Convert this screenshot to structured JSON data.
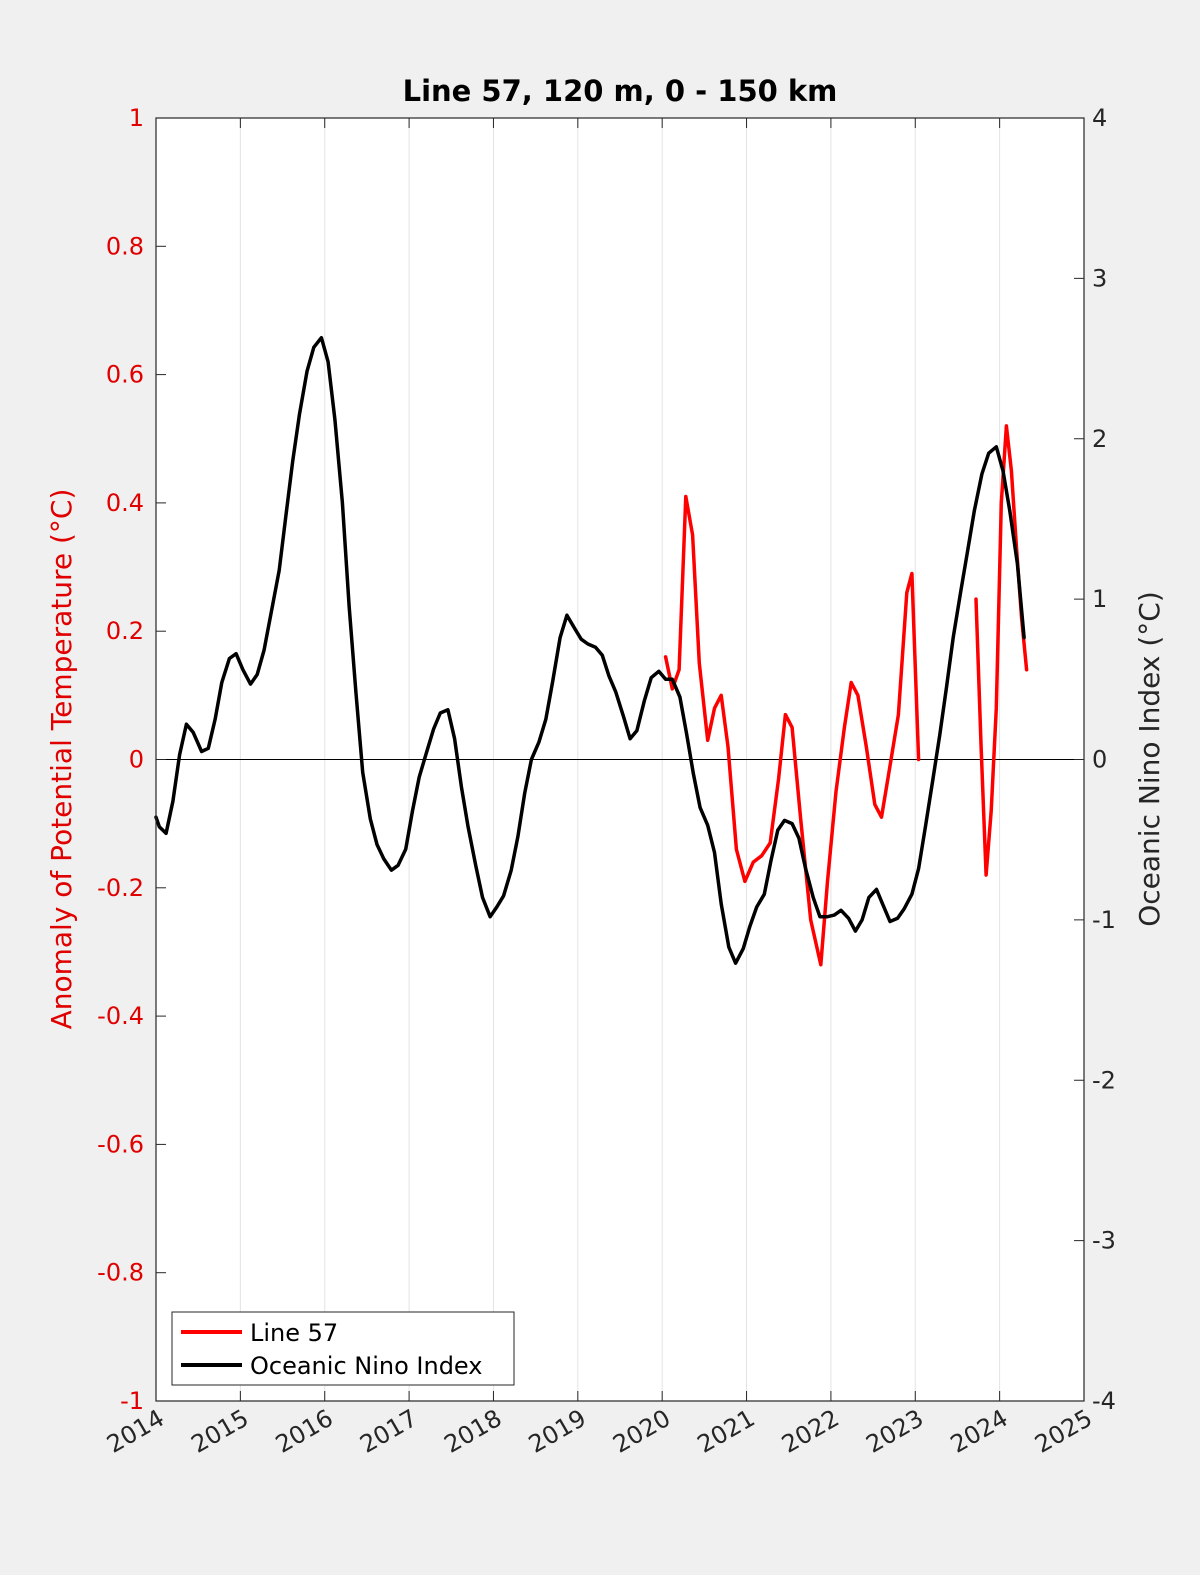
{
  "chart_data": {
    "type": "line",
    "title": "Line 57, 120 m, 0 - 150 km",
    "xlabel": "",
    "ylabel_left": "Anomaly of Potential Temperature (°C)",
    "ylabel_right": "Oceanic Nino Index (°C)",
    "xlim": [
      2014,
      2025
    ],
    "ylim_left": [
      -1,
      1
    ],
    "ylim_right": [
      -4,
      4
    ],
    "x_ticks": [
      2014,
      2015,
      2016,
      2017,
      2018,
      2019,
      2020,
      2021,
      2022,
      2023,
      2024,
      2025
    ],
    "x_tick_labels": [
      "2014",
      "2015",
      "2016",
      "2017",
      "2018",
      "2019",
      "2020",
      "2021",
      "2022",
      "2023",
      "2024",
      "2025"
    ],
    "y_left_ticks": [
      -1,
      -0.8,
      -0.6,
      -0.4,
      -0.2,
      0,
      0.2,
      0.4,
      0.6,
      0.8,
      1
    ],
    "y_left_tick_labels": [
      "-1",
      "-0.8",
      "-0.6",
      "-0.4",
      "-0.2",
      "0",
      "0.2",
      "0.4",
      "0.6",
      "0.8",
      "1"
    ],
    "y_right_ticks": [
      -4,
      -3,
      -2,
      -1,
      0,
      1,
      2,
      3,
      4
    ],
    "y_right_tick_labels": [
      "-4",
      "-3",
      "-2",
      "-1",
      "0",
      "1",
      "2",
      "3",
      "4"
    ],
    "grid": "vertical",
    "zero_line": true,
    "legend": "bottom-left",
    "colors": {
      "line57": "#ff0000",
      "oni": "#000000"
    },
    "series": [
      {
        "name": "Line 57",
        "axis": "left",
        "color": "#ff0000",
        "segments": [
          [
            [
              2020.04,
              0.16
            ],
            [
              2020.12,
              0.11
            ],
            [
              2020.2,
              0.14
            ],
            [
              2020.28,
              0.41
            ],
            [
              2020.36,
              0.35
            ],
            [
              2020.44,
              0.15
            ],
            [
              2020.54,
              0.03
            ],
            [
              2020.62,
              0.08
            ],
            [
              2020.7,
              0.1
            ],
            [
              2020.78,
              0.02
            ],
            [
              2020.88,
              -0.14
            ],
            [
              2020.98,
              -0.19
            ],
            [
              2021.08,
              -0.16
            ],
            [
              2021.18,
              -0.15
            ],
            [
              2021.28,
              -0.13
            ],
            [
              2021.38,
              -0.03
            ],
            [
              2021.46,
              0.07
            ],
            [
              2021.54,
              0.05
            ],
            [
              2021.64,
              -0.09
            ],
            [
              2021.76,
              -0.25
            ],
            [
              2021.88,
              -0.32
            ],
            [
              2021.96,
              -0.19
            ],
            [
              2022.06,
              -0.05
            ],
            [
              2022.16,
              0.05
            ],
            [
              2022.24,
              0.12
            ],
            [
              2022.32,
              0.1
            ],
            [
              2022.42,
              0.02
            ],
            [
              2022.52,
              -0.07
            ],
            [
              2022.6,
              -0.09
            ],
            [
              2022.7,
              -0.01
            ],
            [
              2022.8,
              0.07
            ],
            [
              2022.9,
              0.26
            ],
            [
              2022.96,
              0.29
            ],
            [
              2023.04,
              0.0
            ]
          ],
          [
            [
              2023.72,
              0.25
            ],
            [
              2023.78,
              0.02
            ],
            [
              2023.84,
              -0.18
            ],
            [
              2023.9,
              -0.08
            ],
            [
              2023.96,
              0.08
            ],
            [
              2024.02,
              0.4
            ],
            [
              2024.08,
              0.52
            ],
            [
              2024.14,
              0.45
            ],
            [
              2024.2,
              0.33
            ],
            [
              2024.26,
              0.22
            ],
            [
              2024.32,
              0.14
            ]
          ]
        ]
      },
      {
        "name": "Oceanic Nino Index",
        "axis": "right",
        "color": "#000000",
        "segments": [
          [
            [
              2014.0,
              -0.36
            ],
            [
              2014.04,
              -0.42
            ],
            [
              2014.12,
              -0.46
            ],
            [
              2014.2,
              -0.26
            ],
            [
              2014.28,
              0.03
            ],
            [
              2014.36,
              0.22
            ],
            [
              2014.44,
              0.17
            ],
            [
              2014.54,
              0.05
            ],
            [
              2014.62,
              0.07
            ],
            [
              2014.7,
              0.25
            ],
            [
              2014.78,
              0.48
            ],
            [
              2014.87,
              0.63
            ],
            [
              2014.95,
              0.66
            ],
            [
              2015.03,
              0.56
            ],
            [
              2015.12,
              0.47
            ],
            [
              2015.2,
              0.53
            ],
            [
              2015.28,
              0.68
            ],
            [
              2015.37,
              0.93
            ],
            [
              2015.46,
              1.18
            ],
            [
              2015.54,
              1.52
            ],
            [
              2015.62,
              1.86
            ],
            [
              2015.7,
              2.15
            ],
            [
              2015.79,
              2.42
            ],
            [
              2015.87,
              2.57
            ],
            [
              2015.96,
              2.63
            ],
            [
              2016.04,
              2.48
            ],
            [
              2016.12,
              2.12
            ],
            [
              2016.21,
              1.6
            ],
            [
              2016.29,
              0.95
            ],
            [
              2016.37,
              0.42
            ],
            [
              2016.45,
              -0.08
            ],
            [
              2016.54,
              -0.37
            ],
            [
              2016.62,
              -0.53
            ],
            [
              2016.7,
              -0.62
            ],
            [
              2016.79,
              -0.69
            ],
            [
              2016.87,
              -0.66
            ],
            [
              2016.96,
              -0.56
            ],
            [
              2017.04,
              -0.32
            ],
            [
              2017.12,
              -0.11
            ],
            [
              2017.21,
              0.05
            ],
            [
              2017.29,
              0.19
            ],
            [
              2017.37,
              0.29
            ],
            [
              2017.46,
              0.31
            ],
            [
              2017.54,
              0.13
            ],
            [
              2017.62,
              -0.17
            ],
            [
              2017.7,
              -0.42
            ],
            [
              2017.79,
              -0.66
            ],
            [
              2017.87,
              -0.86
            ],
            [
              2017.96,
              -0.98
            ],
            [
              2018.04,
              -0.92
            ],
            [
              2018.12,
              -0.85
            ],
            [
              2018.21,
              -0.69
            ],
            [
              2018.29,
              -0.48
            ],
            [
              2018.37,
              -0.21
            ],
            [
              2018.45,
              0.0
            ],
            [
              2018.54,
              0.11
            ],
            [
              2018.62,
              0.25
            ],
            [
              2018.7,
              0.48
            ],
            [
              2018.79,
              0.76
            ],
            [
              2018.87,
              0.9
            ],
            [
              2018.96,
              0.82
            ],
            [
              2019.04,
              0.75
            ],
            [
              2019.12,
              0.72
            ],
            [
              2019.21,
              0.7
            ],
            [
              2019.29,
              0.65
            ],
            [
              2019.37,
              0.52
            ],
            [
              2019.45,
              0.42
            ],
            [
              2019.54,
              0.27
            ],
            [
              2019.62,
              0.13
            ],
            [
              2019.7,
              0.18
            ],
            [
              2019.79,
              0.37
            ],
            [
              2019.87,
              0.51
            ],
            [
              2019.96,
              0.55
            ],
            [
              2020.04,
              0.5
            ],
            [
              2020.12,
              0.5
            ],
            [
              2020.21,
              0.39
            ],
            [
              2020.29,
              0.16
            ],
            [
              2020.37,
              -0.09
            ],
            [
              2020.45,
              -0.3
            ],
            [
              2020.54,
              -0.41
            ],
            [
              2020.62,
              -0.58
            ],
            [
              2020.7,
              -0.9
            ],
            [
              2020.79,
              -1.17
            ],
            [
              2020.87,
              -1.27
            ],
            [
              2020.96,
              -1.18
            ],
            [
              2021.04,
              -1.04
            ],
            [
              2021.12,
              -0.92
            ],
            [
              2021.21,
              -0.84
            ],
            [
              2021.29,
              -0.63
            ],
            [
              2021.37,
              -0.44
            ],
            [
              2021.45,
              -0.38
            ],
            [
              2021.54,
              -0.4
            ],
            [
              2021.62,
              -0.49
            ],
            [
              2021.7,
              -0.68
            ],
            [
              2021.79,
              -0.86
            ],
            [
              2021.87,
              -0.98
            ],
            [
              2021.96,
              -0.98
            ],
            [
              2022.04,
              -0.97
            ],
            [
              2022.12,
              -0.94
            ],
            [
              2022.21,
              -0.99
            ],
            [
              2022.29,
              -1.07
            ],
            [
              2022.37,
              -1.0
            ],
            [
              2022.45,
              -0.86
            ],
            [
              2022.54,
              -0.81
            ],
            [
              2022.62,
              -0.91
            ],
            [
              2022.7,
              -1.01
            ],
            [
              2022.79,
              -0.99
            ],
            [
              2022.87,
              -0.93
            ],
            [
              2022.96,
              -0.84
            ],
            [
              2023.04,
              -0.68
            ],
            [
              2023.12,
              -0.42
            ],
            [
              2023.21,
              -0.12
            ],
            [
              2023.29,
              0.15
            ],
            [
              2023.37,
              0.45
            ],
            [
              2023.45,
              0.76
            ],
            [
              2023.54,
              1.05
            ],
            [
              2023.62,
              1.3
            ],
            [
              2023.7,
              1.55
            ],
            [
              2023.79,
              1.78
            ],
            [
              2023.87,
              1.91
            ],
            [
              2023.96,
              1.95
            ],
            [
              2024.04,
              1.8
            ],
            [
              2024.12,
              1.55
            ],
            [
              2024.21,
              1.22
            ],
            [
              2024.29,
              0.76
            ]
          ]
        ]
      }
    ]
  }
}
